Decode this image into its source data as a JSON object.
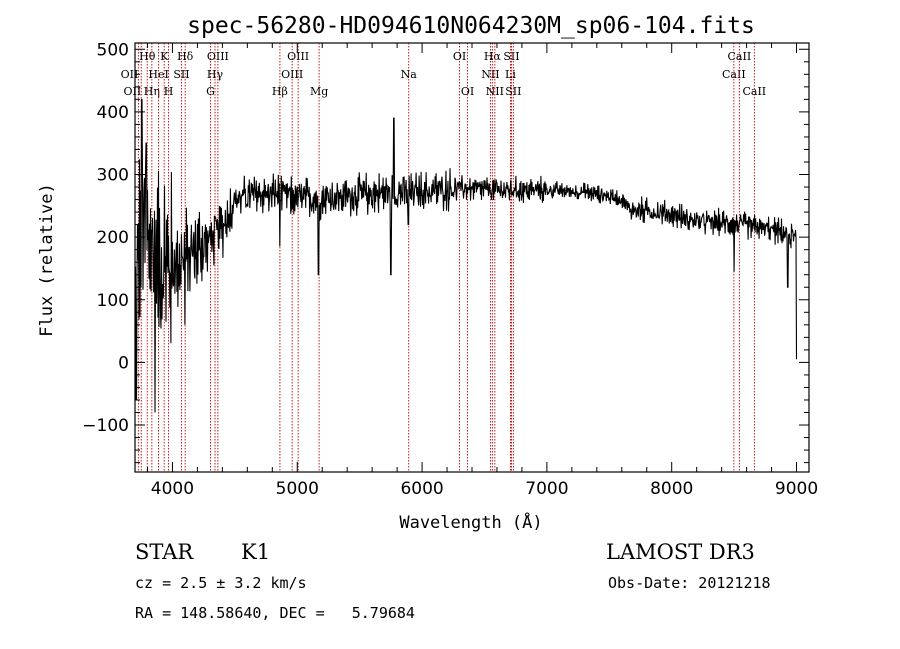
{
  "chart_data": {
    "type": "line",
    "title": "spec-56280-HD094610N064230M_sp06-104.fits",
    "xlabel": "Wavelength (Å)",
    "ylabel": "Flux (relative)",
    "xlim": [
      3700,
      9100
    ],
    "ylim": [
      -175,
      510
    ],
    "xticks": [
      4000,
      5000,
      6000,
      7000,
      8000,
      9000
    ],
    "xticklabels": [
      "4000",
      "5000",
      "6000",
      "7000",
      "8000",
      "9000"
    ],
    "yticks": [
      -100,
      0,
      100,
      200,
      300,
      400,
      500
    ],
    "yticklabels": [
      "−100",
      "0",
      "100",
      "200",
      "300",
      "400",
      "500"
    ],
    "continuum": [
      [
        3700,
        60
      ],
      [
        3730,
        180
      ],
      [
        3770,
        220
      ],
      [
        3820,
        190
      ],
      [
        3900,
        160
      ],
      [
        4000,
        150
      ],
      [
        4100,
        170
      ],
      [
        4250,
        185
      ],
      [
        4400,
        215
      ],
      [
        4500,
        260
      ],
      [
        4700,
        270
      ],
      [
        4860,
        268
      ],
      [
        5000,
        262
      ],
      [
        5200,
        262
      ],
      [
        5500,
        268
      ],
      [
        5800,
        272
      ],
      [
        6000,
        272
      ],
      [
        6300,
        278
      ],
      [
        6600,
        275
      ],
      [
        7000,
        275
      ],
      [
        7300,
        272
      ],
      [
        7600,
        262
      ],
      [
        7650,
        245
      ],
      [
        7800,
        242
      ],
      [
        8000,
        236
      ],
      [
        8200,
        225
      ],
      [
        8500,
        222
      ],
      [
        8800,
        212
      ],
      [
        9000,
        200
      ]
    ],
    "features": [
      {
        "x": 3710,
        "flux": -60
      },
      {
        "x": 3755,
        "flux": 420
      },
      {
        "x": 3790,
        "flux": 350
      },
      {
        "x": 3860,
        "flux": -80
      },
      {
        "x": 4100,
        "flux": 60
      },
      {
        "x": 4860,
        "flux": 185
      },
      {
        "x": 5170,
        "flux": 140
      },
      {
        "x": 5750,
        "flux": 140
      },
      {
        "x": 5775,
        "flux": 390
      },
      {
        "x": 5890,
        "flux": 220
      },
      {
        "x": 8500,
        "flux": 145
      },
      {
        "x": 8930,
        "flux": 120
      },
      {
        "x": 9000,
        "flux": 5
      }
    ],
    "lines": [
      {
        "wl": 3727,
        "label": "OII",
        "row": 1,
        "anchor": "end"
      },
      {
        "wl": 3750,
        "label": "OII",
        "row": 2,
        "anchor": "end"
      },
      {
        "wl": 3798,
        "label": "Hθ",
        "row": 0,
        "anchor": "middle"
      },
      {
        "wl": 3835,
        "label": "Hη",
        "row": 2,
        "anchor": "middle"
      },
      {
        "wl": 3889,
        "label": "HeI",
        "row": 1,
        "anchor": "middle"
      },
      {
        "wl": 3934,
        "label": "K",
        "row": 0,
        "anchor": "middle"
      },
      {
        "wl": 3969,
        "label": "H",
        "row": 2,
        "anchor": "middle"
      },
      {
        "wl": 4072,
        "label": "SII",
        "row": 1,
        "anchor": "middle"
      },
      {
        "wl": 4102,
        "label": "Hδ",
        "row": 0,
        "anchor": "middle"
      },
      {
        "wl": 4305,
        "label": "G",
        "row": 2,
        "anchor": "middle"
      },
      {
        "wl": 4341,
        "label": "Hγ",
        "row": 1,
        "anchor": "middle"
      },
      {
        "wl": 4364,
        "label": "OIII",
        "row": 0,
        "anchor": "middle"
      },
      {
        "wl": 4861,
        "label": "Hβ",
        "row": 2,
        "anchor": "middle"
      },
      {
        "wl": 4959,
        "label": "OIII",
        "row": 1,
        "anchor": "middle"
      },
      {
        "wl": 5007,
        "label": "OIII",
        "row": 0,
        "anchor": "middle"
      },
      {
        "wl": 5175,
        "label": "Mg",
        "row": 2,
        "anchor": "middle"
      },
      {
        "wl": 5893,
        "label": "Na",
        "row": 1,
        "anchor": "middle"
      },
      {
        "wl": 6300,
        "label": "OI",
        "row": 0,
        "anchor": "middle"
      },
      {
        "wl": 6364,
        "label": "OI",
        "row": 2,
        "anchor": "middle"
      },
      {
        "wl": 6548,
        "label": "NII",
        "row": 1,
        "anchor": "middle"
      },
      {
        "wl": 6563,
        "label": "Hα",
        "row": 0,
        "anchor": "middle"
      },
      {
        "wl": 6583,
        "label": "NII",
        "row": 2,
        "anchor": "middle"
      },
      {
        "wl": 6708,
        "label": "Li",
        "row": 1,
        "anchor": "middle"
      },
      {
        "wl": 6716,
        "label": "SII",
        "row": 0,
        "anchor": "middle"
      },
      {
        "wl": 6731,
        "label": "SII",
        "row": 2,
        "anchor": "middle"
      },
      {
        "wl": 8498,
        "label": "CaII",
        "row": 1,
        "anchor": "middle"
      },
      {
        "wl": 8542,
        "label": "CaII",
        "row": 0,
        "anchor": "middle"
      },
      {
        "wl": 8662,
        "label": "CaII",
        "row": 2,
        "anchor": "middle"
      }
    ]
  },
  "info": {
    "class": "STAR",
    "subclass": "K1",
    "survey": "LAMOST DR3",
    "cz": "cz = 2.5 ± 3.2 km/s",
    "obs_date": "Obs-Date: 20121218",
    "coords": "RA = 148.58640, DEC =   5.79684"
  },
  "colors": {
    "spectrum": "#000000",
    "lines": "#c00000",
    "axes": "#000000"
  }
}
